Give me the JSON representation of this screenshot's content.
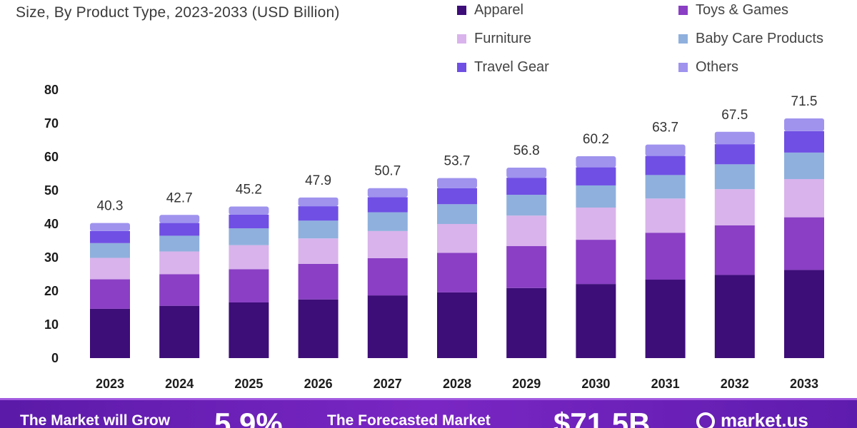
{
  "header": {
    "subtitle": "Size, By Product Type, 2023-2033 (USD Billion)"
  },
  "legend": [
    {
      "label": "Apparel",
      "color": "#3d0d78"
    },
    {
      "label": "Toys & Games",
      "color": "#8a3fc4"
    },
    {
      "label": "Furniture",
      "color": "#d9b3ec"
    },
    {
      "label": "Baby Care Products",
      "color": "#8fb0dd"
    },
    {
      "label": "Travel Gear",
      "color": "#6f4fe4"
    },
    {
      "label": "Others",
      "color": "#9f93ee"
    }
  ],
  "chart_data": {
    "type": "bar",
    "stacked": true,
    "categories": [
      "2023",
      "2024",
      "2025",
      "2026",
      "2027",
      "2028",
      "2029",
      "2030",
      "2031",
      "2032",
      "2033"
    ],
    "series": [
      {
        "name": "Apparel",
        "values": [
          14.7,
          15.6,
          16.6,
          17.5,
          18.7,
          19.6,
          20.9,
          22.1,
          23.4,
          24.8,
          26.3
        ]
      },
      {
        "name": "Toys & Games",
        "values": [
          8.8,
          9.4,
          9.9,
          10.6,
          11.1,
          11.8,
          12.5,
          13.2,
          14.0,
          14.8,
          15.7
        ]
      },
      {
        "name": "Furniture",
        "values": [
          6.4,
          6.8,
          7.2,
          7.6,
          8.1,
          8.6,
          9.1,
          9.6,
          10.2,
          10.8,
          11.4
        ]
      },
      {
        "name": "Baby Care Products",
        "values": [
          4.4,
          4.7,
          5.0,
          5.3,
          5.6,
          5.9,
          6.2,
          6.6,
          7.0,
          7.4,
          7.9
        ]
      },
      {
        "name": "Travel Gear",
        "values": [
          3.6,
          3.8,
          4.1,
          4.3,
          4.5,
          4.8,
          5.1,
          5.4,
          5.7,
          6.0,
          6.4
        ]
      },
      {
        "name": "Others",
        "values": [
          2.4,
          2.4,
          2.4,
          2.6,
          2.7,
          3.0,
          3.0,
          3.3,
          3.4,
          3.7,
          3.8
        ]
      }
    ],
    "totals": [
      "40.3",
      "42.7",
      "45.2",
      "47.9",
      "50.7",
      "53.7",
      "56.8",
      "60.2",
      "63.7",
      "67.5",
      "71.5"
    ],
    "y_ticks": [
      0,
      10,
      20,
      30,
      40,
      50,
      60,
      70,
      80
    ],
    "ylim": [
      0,
      80
    ],
    "grid": false,
    "legend_position": "top-right"
  },
  "footer": {
    "text1": "The Market will Grow",
    "value1": "5.9%",
    "text2": "The Forecasted Market",
    "value2": "$71.5B",
    "brand": "market.us"
  }
}
